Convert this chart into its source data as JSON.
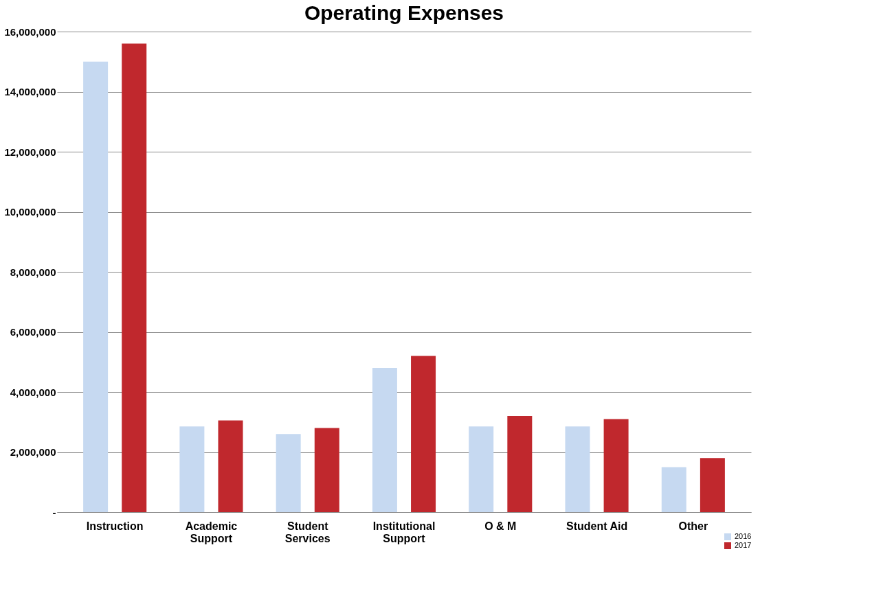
{
  "chart_data": {
    "type": "bar",
    "title": "Operating Expenses",
    "categories": [
      "Instruction",
      "Academic Support",
      "Student Services",
      "Institutional Support",
      "O & M",
      "Student Aid",
      "Other"
    ],
    "series": [
      {
        "name": "2016",
        "color": "#c6d9f1",
        "values": [
          15000000,
          2850000,
          2600000,
          4800000,
          2850000,
          2850000,
          1500000
        ]
      },
      {
        "name": "2017",
        "color": "#c0282d",
        "values": [
          15600000,
          3050000,
          2800000,
          5200000,
          3200000,
          3100000,
          1800000
        ]
      }
    ],
    "ylim": [
      0,
      16000000
    ],
    "yticks": [
      {
        "value": 0,
        "label": "-"
      },
      {
        "value": 2000000,
        "label": "2,000,000"
      },
      {
        "value": 4000000,
        "label": "4,000,000"
      },
      {
        "value": 6000000,
        "label": "6,000,000"
      },
      {
        "value": 8000000,
        "label": "8,000,000"
      },
      {
        "value": 10000000,
        "label": "10,000,000"
      },
      {
        "value": 12000000,
        "label": "12,000,000"
      },
      {
        "value": 14000000,
        "label": "14,000,000"
      },
      {
        "value": 16000000,
        "label": "16,000,000"
      }
    ],
    "grid": "y",
    "legend": "bottom right"
  }
}
